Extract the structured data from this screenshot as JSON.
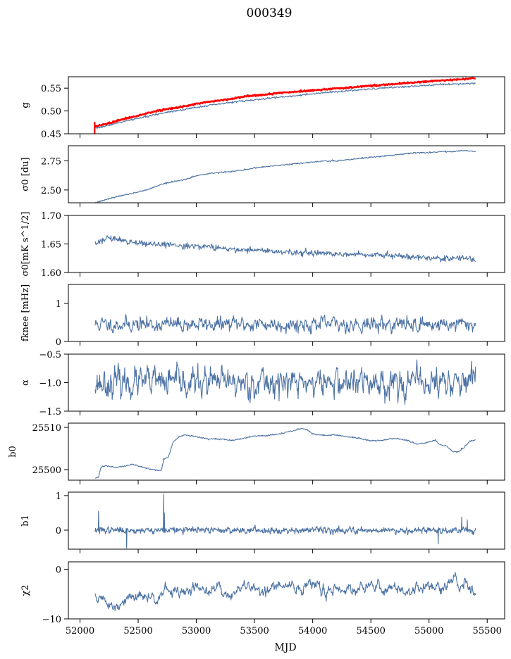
{
  "figure": {
    "title": "000349",
    "xlabel": "MJD"
  },
  "colors": {
    "series": "#4c72a4",
    "fit": "#ff0000"
  },
  "x_axis": {
    "range": [
      51900,
      55650
    ],
    "ticks": [
      52000,
      52500,
      53000,
      53500,
      54000,
      54500,
      55000,
      55500
    ],
    "tick_labels": [
      "52000",
      "52500",
      "53000",
      "53500",
      "54000",
      "54500",
      "55000",
      "55500"
    ]
  },
  "chart_data": [
    {
      "type": "line",
      "ylabel": "g",
      "ylim": [
        0.45,
        0.575
      ],
      "yticks": [
        0.45,
        0.5,
        0.55
      ],
      "ytick_labels": [
        "0.45",
        "0.50",
        "0.55"
      ],
      "series": [
        {
          "style": "thin",
          "color": "#4c72a4",
          "noise": 0.001,
          "x": [
            52120,
            52150,
            52200,
            52300,
            52400,
            52500,
            52600,
            52700,
            52800,
            52900,
            53000,
            53100,
            53200,
            53300,
            53400,
            53500,
            53600,
            53700,
            53800,
            53900,
            54000,
            54100,
            54200,
            54300,
            54400,
            54500,
            54600,
            54700,
            54800,
            54900,
            55000,
            55100,
            55200,
            55300,
            55400
          ],
          "y": [
            0.462,
            0.463,
            0.466,
            0.472,
            0.478,
            0.484,
            0.489,
            0.495,
            0.5,
            0.503,
            0.508,
            0.512,
            0.515,
            0.519,
            0.522,
            0.524,
            0.527,
            0.53,
            0.532,
            0.535,
            0.537,
            0.54,
            0.542,
            0.544,
            0.546,
            0.548,
            0.55,
            0.552,
            0.553,
            0.555,
            0.557,
            0.558,
            0.559,
            0.56,
            0.561
          ]
        },
        {
          "style": "thick",
          "color": "#ff0000",
          "noise": 0.0008,
          "x": [
            52120,
            52150,
            52200,
            52300,
            52400,
            52500,
            52600,
            52700,
            52800,
            52900,
            53000,
            53100,
            53200,
            53300,
            53400,
            53500,
            53600,
            53700,
            53800,
            53900,
            54000,
            54100,
            54200,
            54300,
            54400,
            54500,
            54600,
            54700,
            54800,
            54900,
            55000,
            55100,
            55200,
            55300,
            55400
          ],
          "y": [
            0.466,
            0.467,
            0.47,
            0.477,
            0.484,
            0.49,
            0.496,
            0.502,
            0.506,
            0.51,
            0.516,
            0.52,
            0.523,
            0.527,
            0.531,
            0.534,
            0.536,
            0.539,
            0.541,
            0.543,
            0.545,
            0.547,
            0.549,
            0.551,
            0.553,
            0.555,
            0.557,
            0.559,
            0.561,
            0.563,
            0.565,
            0.567,
            0.568,
            0.57,
            0.572
          ]
        }
      ]
    },
    {
      "type": "line",
      "ylabel": "σ0 [du]",
      "ylim": [
        2.39,
        2.88
      ],
      "yticks": [
        2.5,
        2.75
      ],
      "ytick_labels": [
        "2.50",
        "2.75"
      ],
      "series": [
        {
          "style": "thin",
          "color": "#4c72a4",
          "noise": 0.003,
          "x": [
            52130,
            52200,
            52300,
            52400,
            52500,
            52600,
            52700,
            52800,
            52900,
            53000,
            53100,
            53200,
            53300,
            53400,
            53500,
            53600,
            53700,
            53800,
            53900,
            54000,
            54100,
            54200,
            54300,
            54400,
            54500,
            54600,
            54700,
            54800,
            54900,
            55000,
            55100,
            55200,
            55300,
            55400
          ],
          "y": [
            2.39,
            2.41,
            2.44,
            2.46,
            2.48,
            2.51,
            2.55,
            2.57,
            2.59,
            2.62,
            2.64,
            2.65,
            2.66,
            2.67,
            2.69,
            2.7,
            2.71,
            2.72,
            2.73,
            2.74,
            2.75,
            2.75,
            2.76,
            2.77,
            2.78,
            2.79,
            2.8,
            2.81,
            2.82,
            2.82,
            2.83,
            2.83,
            2.84,
            2.83
          ]
        }
      ]
    },
    {
      "type": "line",
      "ylabel": "σ0[mK s^1/2]",
      "ylim": [
        1.6,
        1.7
      ],
      "yticks": [
        1.6,
        1.65,
        1.7
      ],
      "ytick_labels": [
        "1.60",
        "1.65",
        "1.70"
      ],
      "series": [
        {
          "style": "thin",
          "color": "#4c72a4",
          "noise": 0.0025,
          "x": [
            52130,
            52200,
            52250,
            52300,
            52400,
            52500,
            52600,
            52700,
            52800,
            52900,
            53000,
            53100,
            53200,
            53300,
            53400,
            53500,
            53600,
            53700,
            53800,
            53900,
            54000,
            54100,
            54200,
            54300,
            54400,
            54500,
            54600,
            54700,
            54800,
            54900,
            55000,
            55100,
            55200,
            55300,
            55400
          ],
          "y": [
            1.651,
            1.656,
            1.661,
            1.659,
            1.654,
            1.652,
            1.651,
            1.649,
            1.648,
            1.647,
            1.646,
            1.645,
            1.643,
            1.641,
            1.64,
            1.639,
            1.638,
            1.637,
            1.636,
            1.635,
            1.634,
            1.633,
            1.632,
            1.632,
            1.631,
            1.63,
            1.63,
            1.629,
            1.628,
            1.627,
            1.626,
            1.625,
            1.625,
            1.626,
            1.622
          ]
        }
      ]
    },
    {
      "type": "line",
      "ylabel": "fknee [mHz]",
      "ylim": [
        0,
        1.5
      ],
      "yticks": [
        0,
        1
      ],
      "ytick_labels": [
        "0",
        "1"
      ],
      "series": [
        {
          "style": "noise",
          "color": "#4c72a4",
          "x_range": [
            52130,
            55400
          ],
          "n": 760,
          "mean": 0.45,
          "std": 0.1,
          "clip": [
            0.2,
            0.8
          ],
          "seed": 11
        }
      ]
    },
    {
      "type": "line",
      "ylabel": "α",
      "ylim": [
        -1.5,
        -0.5
      ],
      "yticks": [
        -1.5,
        -1.0,
        -0.5
      ],
      "ytick_labels": [
        "−1.5",
        "−1.0",
        "−0.5"
      ],
      "series": [
        {
          "style": "noise",
          "color": "#4c72a4",
          "x_range": [
            52130,
            55400
          ],
          "n": 760,
          "mean": -1.0,
          "std": 0.13,
          "clip": [
            -1.38,
            -0.52
          ],
          "seed": 23
        }
      ]
    },
    {
      "type": "line",
      "ylabel": "b0",
      "ylim": [
        25497.5,
        25511
      ],
      "yticks": [
        25500,
        25510
      ],
      "ytick_labels": [
        "25500",
        "25510"
      ],
      "series": [
        {
          "style": "thin",
          "color": "#4c72a4",
          "noise": 0.08,
          "x": [
            52130,
            52160,
            52180,
            52220,
            52300,
            52380,
            52450,
            52500,
            52560,
            52620,
            52700,
            52720,
            52760,
            52800,
            52850,
            52900,
            53000,
            53100,
            53200,
            53300,
            53400,
            53500,
            53600,
            53700,
            53800,
            53900,
            53950,
            54000,
            54100,
            54200,
            54300,
            54400,
            54500,
            54600,
            54700,
            54800,
            54900,
            55000,
            55050,
            55100,
            55150,
            55200,
            55250,
            55300,
            55350,
            55400
          ],
          "y": [
            25498,
            25498.2,
            25500.6,
            25500.9,
            25500.5,
            25500.8,
            25501.3,
            25500.9,
            25500.4,
            25500.0,
            25499.8,
            25502.5,
            25503.0,
            25506.5,
            25507.8,
            25508.2,
            25507.8,
            25507.2,
            25507.3,
            25506.9,
            25507.4,
            25508.0,
            25508.0,
            25508.4,
            25509.0,
            25509.7,
            25509.5,
            25508.4,
            25508.1,
            25508.2,
            25507.8,
            25507.4,
            25506.8,
            25507.0,
            25507.4,
            25507.0,
            25506.0,
            25506.5,
            25507.0,
            25505.8,
            25505.6,
            25504.3,
            25504.2,
            25505.2,
            25506.8,
            25507.0
          ]
        }
      ]
    },
    {
      "type": "line",
      "ylabel": "b1",
      "ylim": [
        -0.55,
        1.1
      ],
      "yticks": [
        0,
        1
      ],
      "ytick_labels": [
        "0",
        "1"
      ],
      "series": [
        {
          "style": "noise",
          "color": "#4c72a4",
          "x_range": [
            52130,
            55400
          ],
          "n": 1100,
          "mean": 0.0,
          "std": 0.045,
          "clip": [
            -0.3,
            0.3
          ],
          "seed": 37,
          "spikes": [
            [
              52160,
              0.55
            ],
            [
              52170,
              -0.1
            ],
            [
              52400,
              -0.52
            ],
            [
              52720,
              1.05
            ],
            [
              52725,
              0.5
            ],
            [
              55080,
              -0.4
            ],
            [
              55280,
              0.38
            ],
            [
              55330,
              0.3
            ]
          ]
        }
      ]
    },
    {
      "type": "line",
      "ylabel": "χ2",
      "ylim": [
        -10,
        1.5
      ],
      "yticks": [
        -10,
        0
      ],
      "ytick_labels": [
        "−10",
        "0"
      ],
      "series": [
        {
          "style": "wander",
          "color": "#4c72a4",
          "x_range": [
            52130,
            55400
          ],
          "n": 900,
          "base_x": [
            52130,
            52250,
            52300,
            52400,
            52500,
            52600,
            52700,
            52800,
            52900,
            53000,
            53100,
            53200,
            53300,
            53400,
            53500,
            53600,
            53700,
            53800,
            53900,
            54000,
            54100,
            54200,
            54300,
            54400,
            54500,
            54600,
            54700,
            54800,
            54900,
            55000,
            55100,
            55200,
            55300,
            55400
          ],
          "base_y": [
            -5.5,
            -6.5,
            -8.5,
            -6.5,
            -5.5,
            -6.0,
            -4.5,
            -4.5,
            -5.0,
            -3.5,
            -4.5,
            -4.0,
            -5.0,
            -4.0,
            -3.5,
            -4.5,
            -3.5,
            -3.5,
            -4.0,
            -3.0,
            -4.5,
            -3.5,
            -4.0,
            -3.5,
            -4.0,
            -3.5,
            -4.0,
            -4.5,
            -3.5,
            -3.5,
            -4.0,
            -2.5,
            -3.5,
            -4.0
          ],
          "std": 0.7,
          "clip": [
            -10,
            -0.3
          ],
          "seed": 51
        }
      ]
    }
  ]
}
